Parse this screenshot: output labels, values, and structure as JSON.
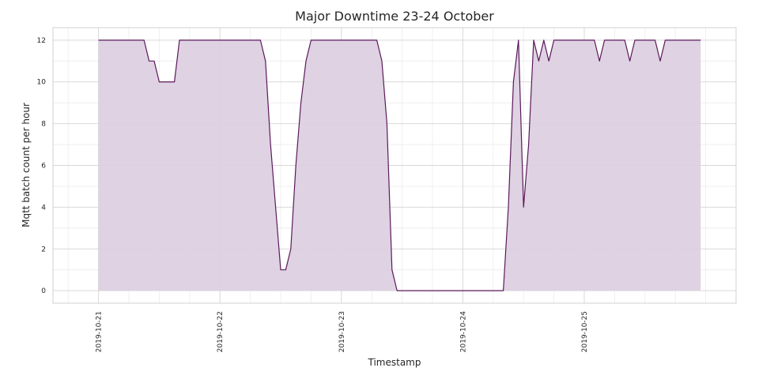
{
  "chart_data": {
    "type": "area",
    "title": "Major Downtime 23-24 October",
    "xlabel": "Timestamp",
    "ylabel": "Mqtt batch count per hour",
    "xlim": [
      "2019-10-20 15:00",
      "2019-10-26 06:00"
    ],
    "ylim": [
      -0.6,
      12.6
    ],
    "x_ticks": [
      "2019-10-21",
      "2019-10-22",
      "2019-10-23",
      "2019-10-24",
      "2019-10-25"
    ],
    "y_ticks": [
      0,
      2,
      4,
      6,
      8,
      10,
      12
    ],
    "grid": true,
    "series": [
      {
        "color": "#5b1a5b",
        "fill": "#ddd0e2",
        "points": [
          [
            "2019-10-21 00:00",
            12
          ],
          [
            "2019-10-21 09:00",
            12
          ],
          [
            "2019-10-21 10:00",
            11
          ],
          [
            "2019-10-21 11:00",
            11
          ],
          [
            "2019-10-21 12:00",
            10
          ],
          [
            "2019-10-21 15:00",
            10
          ],
          [
            "2019-10-21 16:00",
            12
          ],
          [
            "2019-10-22 08:00",
            12
          ],
          [
            "2019-10-22 09:00",
            11
          ],
          [
            "2019-10-22 10:00",
            7
          ],
          [
            "2019-10-22 11:00",
            4
          ],
          [
            "2019-10-22 12:00",
            1
          ],
          [
            "2019-10-22 13:00",
            1
          ],
          [
            "2019-10-22 14:00",
            2
          ],
          [
            "2019-10-22 15:00",
            6
          ],
          [
            "2019-10-22 16:00",
            9
          ],
          [
            "2019-10-22 17:00",
            11
          ],
          [
            "2019-10-22 18:00",
            12
          ],
          [
            "2019-10-23 07:00",
            12
          ],
          [
            "2019-10-23 08:00",
            11
          ],
          [
            "2019-10-23 09:00",
            8
          ],
          [
            "2019-10-23 10:00",
            1
          ],
          [
            "2019-10-23 11:00",
            0
          ],
          [
            "2019-10-24 08:00",
            0
          ],
          [
            "2019-10-24 09:00",
            4
          ],
          [
            "2019-10-24 10:00",
            10
          ],
          [
            "2019-10-24 11:00",
            12
          ],
          [
            "2019-10-24 12:00",
            4
          ],
          [
            "2019-10-24 13:00",
            7
          ],
          [
            "2019-10-24 14:00",
            12
          ],
          [
            "2019-10-24 15:00",
            11
          ],
          [
            "2019-10-24 16:00",
            12
          ],
          [
            "2019-10-24 17:00",
            11
          ],
          [
            "2019-10-24 18:00",
            12
          ],
          [
            "2019-10-25 02:00",
            12
          ],
          [
            "2019-10-25 03:00",
            11
          ],
          [
            "2019-10-25 04:00",
            12
          ],
          [
            "2019-10-25 08:00",
            12
          ],
          [
            "2019-10-25 09:00",
            11
          ],
          [
            "2019-10-25 10:00",
            12
          ],
          [
            "2019-10-25 14:00",
            12
          ],
          [
            "2019-10-25 15:00",
            11
          ],
          [
            "2019-10-25 16:00",
            12
          ],
          [
            "2019-10-25 23:00",
            12
          ]
        ]
      }
    ]
  }
}
